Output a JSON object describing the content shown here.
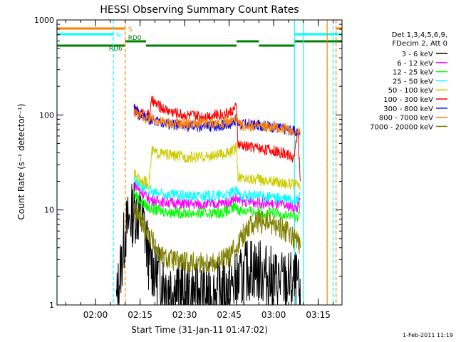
{
  "chart_data": {
    "type": "line",
    "title": "HESSI Observing Summary Count Rates",
    "xlabel": "Start Time (31-Jan-11 01:47:02)",
    "ylabel": "Count Rate (s⁻¹ detector⁻¹)",
    "xlim": [
      "01:47:02",
      "03:23:00"
    ],
    "ylim": [
      1,
      1000
    ],
    "yscale": "log",
    "x_ticks": [
      "02:00",
      "02:15",
      "02:30",
      "02:45",
      "03:00",
      "03:15"
    ],
    "y_ticks": [
      "1",
      "10",
      "100",
      "1000"
    ],
    "footer": "1-Feb-2011 11:19",
    "legend": {
      "placement": "right",
      "header": [
        "Det 1,3,4,5,6,9,",
        "FDecim 2, Att 0"
      ],
      "entries": [
        "3 - 6 keV",
        "6 - 12 keV",
        "12 - 25 keV",
        "25 - 50 keV",
        "50 - 100 keV",
        "100 - 300 keV",
        "300 - 800 keV",
        "800 - 7000 keV",
        "7000 - 20000 keV"
      ]
    },
    "series": [
      {
        "name": "3 - 6 keV",
        "color": "#000000",
        "x": [
          "02:07:00",
          "02:10:00",
          "02:13:00",
          "02:16:00",
          "02:18:00",
          "02:21:00",
          "02:25:00",
          "02:30:00",
          "02:40:00",
          "02:45:00",
          "02:49:00",
          "02:52:00",
          "02:56:00",
          "03:00:00",
          "03:05:00",
          "03:08:00",
          "03:09:00"
        ],
        "y": [
          1,
          6,
          10,
          8,
          3,
          2,
          1.6,
          1.3,
          1.3,
          1.5,
          1.8,
          2.5,
          2.2,
          1.8,
          1.7,
          1.6,
          1
        ]
      },
      {
        "name": "6 - 12 keV",
        "color": "#ff00ff",
        "x": [
          "02:13:00",
          "02:15:00",
          "02:18:00",
          "02:20:00",
          "02:25:00",
          "02:30:00",
          "02:35:00",
          "02:40:00",
          "02:45:00",
          "02:47:30",
          "02:48:00",
          "02:55:00",
          "03:00:00",
          "03:05:00",
          "03:08:00",
          "03:09:00"
        ],
        "y": [
          19,
          16,
          13,
          12.5,
          12,
          11.5,
          11.5,
          11.5,
          12,
          13.5,
          12.5,
          12,
          11.5,
          11,
          10.5,
          13
        ]
      },
      {
        "name": "12 - 25 keV",
        "color": "#00ff00",
        "x": [
          "02:13:00",
          "02:15:00",
          "02:18:00",
          "02:20:00",
          "02:25:00",
          "02:30:00",
          "02:35:00",
          "02:40:00",
          "02:45:00",
          "02:47:30",
          "02:48:00",
          "02:55:00",
          "03:00:00",
          "03:05:00",
          "03:08:00",
          "03:09:00"
        ],
        "y": [
          15,
          12.5,
          10.5,
          10,
          9.5,
          9.3,
          9.3,
          9.3,
          9.7,
          11,
          10,
          9.5,
          9.2,
          8.8,
          8.5,
          11
        ]
      },
      {
        "name": "25 - 50 keV",
        "color": "#00ffff",
        "x": [
          "02:13:00",
          "02:15:00",
          "02:18:00",
          "02:20:00",
          "02:25:00",
          "02:30:00",
          "02:35:00",
          "02:40:00",
          "02:45:00",
          "02:47:30",
          "02:48:00",
          "02:55:00",
          "03:00:00",
          "03:05:00",
          "03:08:00",
          "03:09:00"
        ],
        "y": [
          22,
          18.5,
          16,
          15,
          14.5,
          14,
          14,
          14,
          14.5,
          16,
          14.5,
          14,
          13.5,
          13,
          12.5,
          15
        ]
      },
      {
        "name": "50 - 100 keV",
        "color": "#cccc00",
        "x": [
          "02:13:00",
          "02:15:00",
          "02:18:00",
          "02:19:00",
          "02:20:00",
          "02:25:00",
          "02:30:00",
          "02:35:00",
          "02:40:00",
          "02:45:00",
          "02:47:30",
          "02:48:00",
          "02:55:00",
          "03:00:00",
          "03:05:00",
          "03:08:00",
          "03:09:00"
        ],
        "y": [
          24,
          21,
          19,
          42,
          40,
          38,
          36,
          36,
          37,
          40,
          45,
          22,
          21,
          20,
          19,
          18,
          17
        ]
      },
      {
        "name": "100 - 300 keV",
        "color": "#ff0000",
        "x": [
          "02:13:00",
          "02:15:00",
          "02:18:00",
          "02:19:00",
          "02:22:00",
          "02:25:00",
          "02:30:00",
          "02:35:00",
          "02:40:00",
          "02:45:00",
          "02:47:30",
          "02:48:00",
          "02:55:00",
          "03:00:00",
          "03:05:00",
          "03:07:00",
          "03:08:00",
          "03:09:00"
        ],
        "y": [
          115,
          105,
          100,
          140,
          120,
          110,
          100,
          97,
          100,
          105,
          120,
          48,
          45,
          42,
          38,
          35,
          75,
          20
        ]
      },
      {
        "name": "300 - 800 keV",
        "color": "#0000ff",
        "x": [
          "02:13:00",
          "02:15:00",
          "02:18:00",
          "02:22:00",
          "02:25:00",
          "02:30:00",
          "02:35:00",
          "02:40:00",
          "02:45:00",
          "02:47:30",
          "02:48:00",
          "02:55:00",
          "03:00:00",
          "03:05:00",
          "03:08:00",
          "03:09:00"
        ],
        "y": [
          115,
          100,
          90,
          84,
          80,
          76,
          75,
          76,
          80,
          90,
          80,
          78,
          75,
          70,
          65,
          63
        ]
      },
      {
        "name": "800 - 7000 keV",
        "color": "#ff8000",
        "x": [
          "02:13:00",
          "02:15:00",
          "02:18:00",
          "02:22:00",
          "02:25:00",
          "02:30:00",
          "02:35:00",
          "02:40:00",
          "02:45:00",
          "02:47:30",
          "02:48:00",
          "02:55:00",
          "03:00:00",
          "03:05:00",
          "03:08:00",
          "03:09:00"
        ],
        "y": [
          108,
          98,
          90,
          85,
          82,
          80,
          80,
          81,
          84,
          92,
          78,
          76,
          74,
          70,
          66,
          64
        ]
      },
      {
        "name": "7000 - 20000 keV",
        "color": "#808000",
        "x": [
          "02:13:00",
          "02:14:00",
          "02:16:00",
          "02:18:00",
          "02:20:00",
          "02:22:00",
          "02:25:00",
          "02:30:00",
          "02:40:00",
          "02:45:00",
          "02:48:00",
          "02:52:00",
          "02:56:00",
          "03:00:00",
          "03:04:00",
          "03:07:00",
          "03:09:00"
        ],
        "y": [
          10,
          9,
          7,
          5.5,
          4.2,
          3.2,
          3.0,
          2.8,
          2.8,
          3.2,
          4.5,
          7,
          7.5,
          7,
          6,
          5,
          4
        ]
      }
    ],
    "flags": [
      {
        "label": "S",
        "color": "#ff8000",
        "segments": [
          [
            "01:47:02",
            "02:10:00"
          ],
          [
            "03:21:00",
            "03:23:00"
          ]
        ]
      },
      {
        "label": "N",
        "color": "#00ffff",
        "segments": [
          [
            "01:47:02",
            "02:06:00"
          ],
          [
            "03:07:00",
            "03:23:00"
          ]
        ]
      },
      {
        "label": "RD0",
        "color": "#008000",
        "segments": [
          [
            "02:10:00",
            "02:17:00"
          ],
          [
            "02:47:30",
            "02:55:00"
          ],
          [
            "03:07:00",
            "03:23:00"
          ]
        ]
      },
      {
        "label": "RD6",
        "color": "#008000",
        "segments": [
          [
            "01:47:02",
            "02:10:00"
          ],
          [
            "02:17:00",
            "02:47:30"
          ],
          [
            "02:55:00",
            "03:07:00"
          ]
        ]
      }
    ],
    "vlines": [
      {
        "time": "01:47:02",
        "color": "#00ffff",
        "style": "solid"
      },
      {
        "time": "02:06:00",
        "color": "#00ffff",
        "style": "dashed"
      },
      {
        "time": "02:10:00",
        "color": "#ff8000",
        "style": "dashed"
      },
      {
        "time": "03:07:00",
        "color": "#00ffff",
        "style": "solid"
      },
      {
        "time": "03:10:00",
        "color": "#00ffff",
        "style": "solid"
      },
      {
        "time": "03:18:00",
        "color": "#ff8000",
        "style": "solid"
      },
      {
        "time": "03:20:00",
        "color": "#00ffff",
        "style": "dashed"
      },
      {
        "time": "03:21:00",
        "color": "#ff8000",
        "style": "dashed"
      }
    ]
  }
}
